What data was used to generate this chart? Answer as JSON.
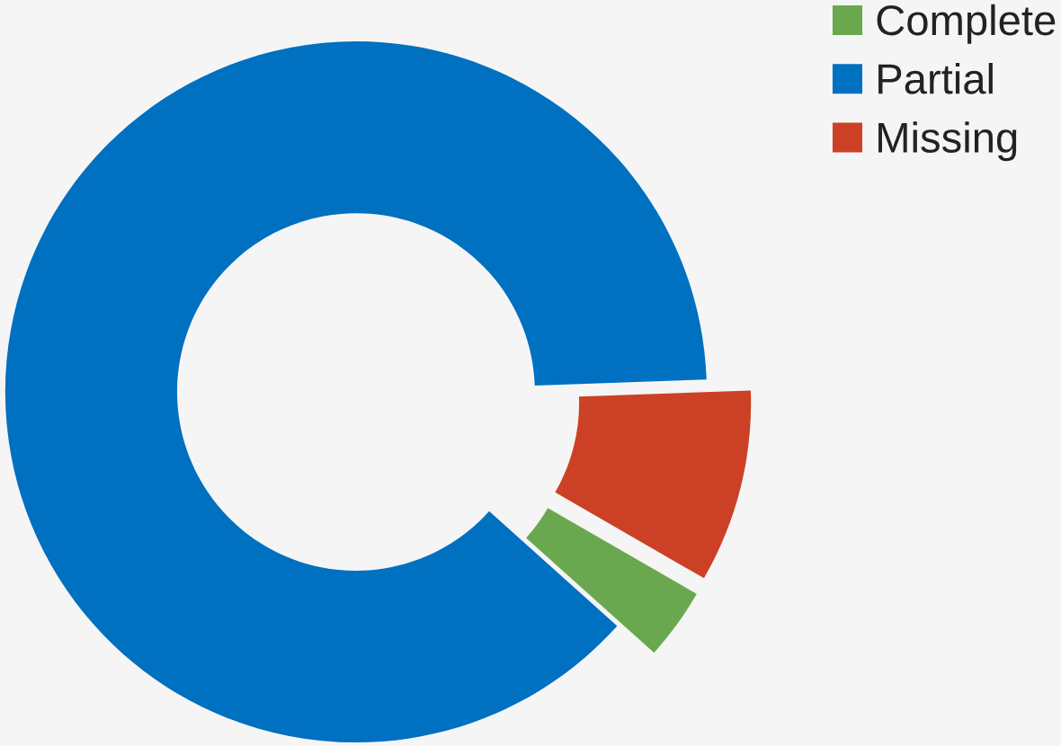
{
  "chart_data": {
    "type": "donut",
    "categories": [
      "Complete",
      "Partial",
      "Missing"
    ],
    "values": [
      3.3,
      87.8,
      8.9
    ],
    "colors": [
      "#6aa84f",
      "#0070c0",
      "#cc4125"
    ],
    "legend": "top right"
  }
}
